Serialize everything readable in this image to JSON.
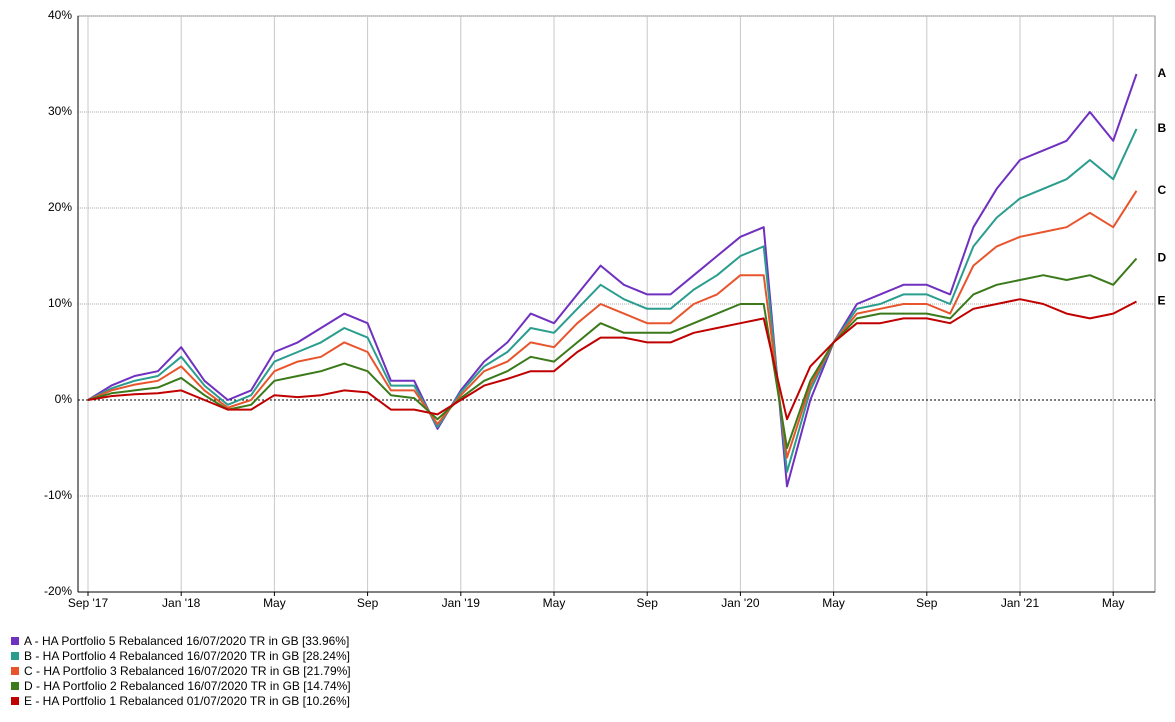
{
  "chart_data": {
    "type": "line",
    "categories": [
      "2017-09",
      "2017-10",
      "2017-11",
      "2017-12",
      "2018-01",
      "2018-02",
      "2018-03",
      "2018-04",
      "2018-05",
      "2018-06",
      "2018-07",
      "2018-08",
      "2018-09",
      "2018-10",
      "2018-11",
      "2018-12",
      "2019-01",
      "2019-02",
      "2019-03",
      "2019-04",
      "2019-05",
      "2019-06",
      "2019-07",
      "2019-08",
      "2019-09",
      "2019-10",
      "2019-11",
      "2019-12",
      "2020-01",
      "2020-02",
      "2020-03",
      "2020-04",
      "2020-05",
      "2020-06",
      "2020-07",
      "2020-08",
      "2020-09",
      "2020-10",
      "2020-11",
      "2020-12",
      "2021-01",
      "2021-02",
      "2021-03",
      "2021-04",
      "2021-05",
      "2021-06"
    ],
    "series": [
      {
        "name": "A - HA Portfolio 5 Rebalanced 16/07/2020 TR in GB [33.96%]",
        "tag": "A",
        "color": "#7030c0",
        "values": [
          0,
          1.5,
          2.5,
          3,
          5.5,
          2,
          0,
          1,
          5,
          6,
          7.5,
          9,
          8,
          2,
          2,
          -3,
          1,
          4,
          6,
          9,
          8,
          11,
          14,
          12,
          11,
          11,
          13,
          15,
          17,
          18,
          -9,
          0,
          6,
          10,
          11,
          12,
          12,
          11,
          18,
          22,
          25,
          26,
          27,
          30,
          27,
          33.96
        ]
      },
      {
        "name": "B - HA Portfolio 4 Rebalanced 16/07/2020 TR in GB [28.24%]",
        "tag": "B",
        "color": "#2a9d8f",
        "values": [
          0,
          1.2,
          2,
          2.5,
          4.5,
          1.5,
          -0.5,
          0.5,
          4,
          5,
          6,
          7.5,
          6.5,
          1.5,
          1.5,
          -2.8,
          0.8,
          3.5,
          5,
          7.5,
          7,
          9.5,
          12,
          10.5,
          9.5,
          9.5,
          11.5,
          13,
          15,
          16,
          -7.5,
          1,
          6,
          9.5,
          10,
          11,
          11,
          10,
          16,
          19,
          21,
          22,
          23,
          25,
          23,
          28.24
        ]
      },
      {
        "name": "C - HA Portfolio 3 Rebalanced 16/07/2020 TR in GB [21.79%]",
        "tag": "C",
        "color": "#e8552d",
        "values": [
          0,
          1,
          1.6,
          2,
          3.5,
          1,
          -0.8,
          0,
          3,
          4,
          4.5,
          6,
          5,
          1,
          1,
          -2.5,
          0.5,
          3,
          4,
          6,
          5.5,
          8,
          10,
          9,
          8,
          8,
          10,
          11,
          13,
          13,
          -6,
          1.5,
          6,
          9,
          9.5,
          10,
          10,
          9,
          14,
          16,
          17,
          17.5,
          18,
          19.5,
          18,
          21.79
        ]
      },
      {
        "name": "D - HA Portfolio 2 Rebalanced 16/07/2020 TR in GB [14.74%]",
        "tag": "D",
        "color": "#3a7a1a",
        "values": [
          0,
          0.7,
          1,
          1.3,
          2.3,
          0.5,
          -1,
          -0.5,
          2,
          2.5,
          3,
          3.8,
          3,
          0.5,
          0.2,
          -2,
          0.2,
          2,
          3,
          4.5,
          4,
          6,
          8,
          7,
          7,
          7,
          8,
          9,
          10,
          10,
          -5,
          2,
          6,
          8.5,
          9,
          9,
          9,
          8.5,
          11,
          12,
          12.5,
          13,
          12.5,
          13,
          12,
          14.74
        ]
      },
      {
        "name": "E - HA Portfolio 1 Rebalanced 01/07/2020 TR in GB [10.26%]",
        "tag": "E",
        "color": "#c00000",
        "values": [
          0,
          0.4,
          0.6,
          0.7,
          1,
          0,
          -1,
          -1,
          0.5,
          0.3,
          0.5,
          1,
          0.8,
          -1,
          -1,
          -1.5,
          0,
          1.5,
          2.2,
          3,
          3,
          5,
          6.5,
          6.5,
          6,
          6,
          7,
          7.5,
          8,
          8.5,
          -2,
          3.5,
          6,
          8,
          8,
          8.5,
          8.5,
          8,
          9.5,
          10,
          10.5,
          10,
          9,
          8.5,
          9,
          10.26
        ]
      }
    ],
    "ylim": [
      -20,
      40
    ],
    "yticks": [
      {
        "value": -20,
        "label": "-20%"
      },
      {
        "value": -10,
        "label": "-10%"
      },
      {
        "value": 0,
        "label": "0%"
      },
      {
        "value": 10,
        "label": "10%"
      },
      {
        "value": 20,
        "label": "20%"
      },
      {
        "value": 30,
        "label": "30%"
      },
      {
        "value": 40,
        "label": "40%"
      }
    ],
    "xticks": [
      {
        "value": "2017-09",
        "label": "Sep '17"
      },
      {
        "value": "2018-01",
        "label": "Jan '18"
      },
      {
        "value": "2018-05",
        "label": "May"
      },
      {
        "value": "2018-09",
        "label": "Sep"
      },
      {
        "value": "2019-01",
        "label": "Jan '19"
      },
      {
        "value": "2019-05",
        "label": "May"
      },
      {
        "value": "2019-09",
        "label": "Sep"
      },
      {
        "value": "2020-01",
        "label": "Jan '20"
      },
      {
        "value": "2020-05",
        "label": "May"
      },
      {
        "value": "2020-09",
        "label": "Sep"
      },
      {
        "value": "2021-01",
        "label": "Jan '21"
      },
      {
        "value": "2021-05",
        "label": "May"
      }
    ],
    "grid": true
  }
}
